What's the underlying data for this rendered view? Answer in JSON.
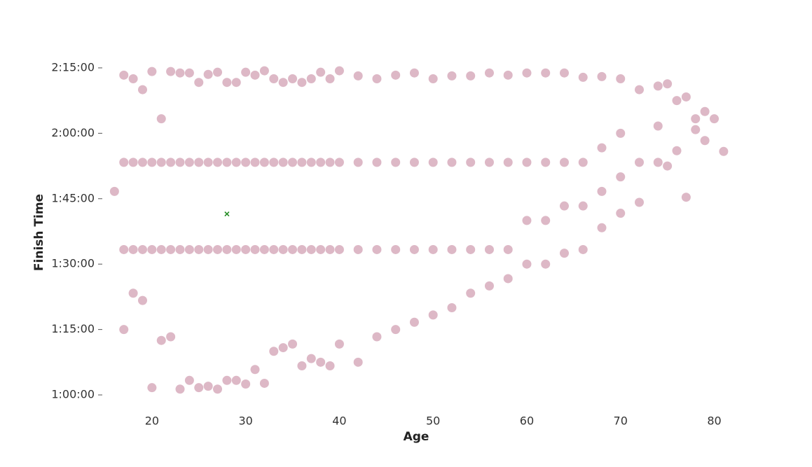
{
  "chart_data": {
    "type": "scatter",
    "xlabel": "Age",
    "ylabel": "Finish Time",
    "color": "#cf9aae",
    "x": [
      16,
      17,
      17,
      17,
      17,
      18,
      18,
      18,
      18,
      19,
      19,
      19,
      19,
      20,
      20,
      20,
      20,
      21,
      21,
      21,
      21,
      22,
      22,
      22,
      22,
      23,
      23,
      23,
      23,
      24,
      24,
      24,
      24,
      25,
      25,
      25,
      25,
      26,
      26,
      26,
      26,
      27,
      27,
      27,
      27,
      28,
      28,
      28,
      28,
      29,
      29,
      29,
      29,
      30,
      30,
      30,
      30,
      31,
      31,
      31,
      31,
      32,
      32,
      32,
      32,
      33,
      33,
      33,
      33,
      34,
      34,
      34,
      34,
      35,
      35,
      35,
      35,
      36,
      36,
      36,
      36,
      37,
      37,
      37,
      37,
      38,
      38,
      38,
      38,
      39,
      39,
      39,
      39,
      40,
      40,
      40,
      40,
      42,
      42,
      42,
      42,
      44,
      44,
      44,
      44,
      46,
      46,
      46,
      46,
      48,
      48,
      48,
      48,
      50,
      50,
      50,
      50,
      52,
      52,
      52,
      52,
      54,
      54,
      54,
      54,
      56,
      56,
      56,
      56,
      58,
      58,
      58,
      58,
      60,
      60,
      60,
      60,
      62,
      62,
      62,
      62,
      64,
      64,
      64,
      64,
      66,
      66,
      66,
      66,
      68,
      68,
      68,
      68,
      70,
      70,
      70,
      70,
      72,
      72,
      72,
      74,
      74,
      74,
      75,
      75,
      76,
      76,
      77,
      77,
      78,
      78,
      79,
      79,
      80,
      81
    ],
    "values": [
      6400,
      4500,
      8000,
      5600,
      6800,
      5000,
      7950,
      5600,
      6800,
      4900,
      7800,
      5600,
      6800,
      3700,
      8050,
      5600,
      6800,
      4350,
      7400,
      5600,
      6800,
      4400,
      8050,
      5600,
      6800,
      3680,
      8030,
      5600,
      6800,
      3800,
      8030,
      5600,
      6800,
      3700,
      7900,
      5600,
      6800,
      3720,
      8010,
      5600,
      6800,
      3680,
      8040,
      5600,
      6800,
      3800,
      7900,
      5600,
      6800,
      3800,
      7900,
      5600,
      6800,
      3750,
      8040,
      5600,
      6800,
      3950,
      8000,
      5600,
      6800,
      3760,
      8060,
      5600,
      6800,
      4200,
      7950,
      5600,
      6800,
      4250,
      7900,
      5600,
      6800,
      4300,
      7950,
      5600,
      6800,
      4000,
      7900,
      5600,
      6800,
      4100,
      7950,
      5600,
      6800,
      4050,
      8040,
      5600,
      6800,
      4000,
      7950,
      5600,
      6800,
      4300,
      8060,
      5600,
      6800,
      4050,
      7990,
      5600,
      6800,
      4400,
      7950,
      5600,
      6800,
      4500,
      8000,
      5600,
      6800,
      4600,
      8030,
      5600,
      6800,
      4700,
      7950,
      5600,
      6800,
      4800,
      7990,
      5600,
      6800,
      5000,
      7990,
      5600,
      6800,
      5100,
      8030,
      5600,
      6800,
      5200,
      8000,
      5600,
      6800,
      5400,
      8030,
      6000,
      6800,
      5400,
      8030,
      6000,
      6800,
      5550,
      8030,
      6200,
      6800,
      5600,
      7970,
      6200,
      6800,
      5900,
      7980,
      6400,
      7000,
      6100,
      7950,
      6600,
      7200,
      6250,
      7800,
      6800,
      6800,
      7850,
      7300,
      6750,
      7880,
      6960,
      7650,
      6320,
      7700,
      7250,
      7400,
      7100,
      7500,
      7400,
      6950
    ],
    "highlight": {
      "x": 28,
      "y": 6090,
      "color": "#228b22"
    },
    "xlim": [
      15,
      84
    ],
    "ylim": [
      3350,
      8215
    ],
    "xticks": [
      20,
      30,
      40,
      50,
      60,
      70,
      80
    ],
    "yticks": [
      {
        "value": 3600,
        "label": "1:00:00"
      },
      {
        "value": 4500,
        "label": "1:15:00"
      },
      {
        "value": 5400,
        "label": "1:30:00"
      },
      {
        "value": 6300,
        "label": "1:45:00"
      },
      {
        "value": 7200,
        "label": "2:00:00"
      },
      {
        "value": 8100,
        "label": "2:15:00"
      }
    ],
    "grid": false
  }
}
